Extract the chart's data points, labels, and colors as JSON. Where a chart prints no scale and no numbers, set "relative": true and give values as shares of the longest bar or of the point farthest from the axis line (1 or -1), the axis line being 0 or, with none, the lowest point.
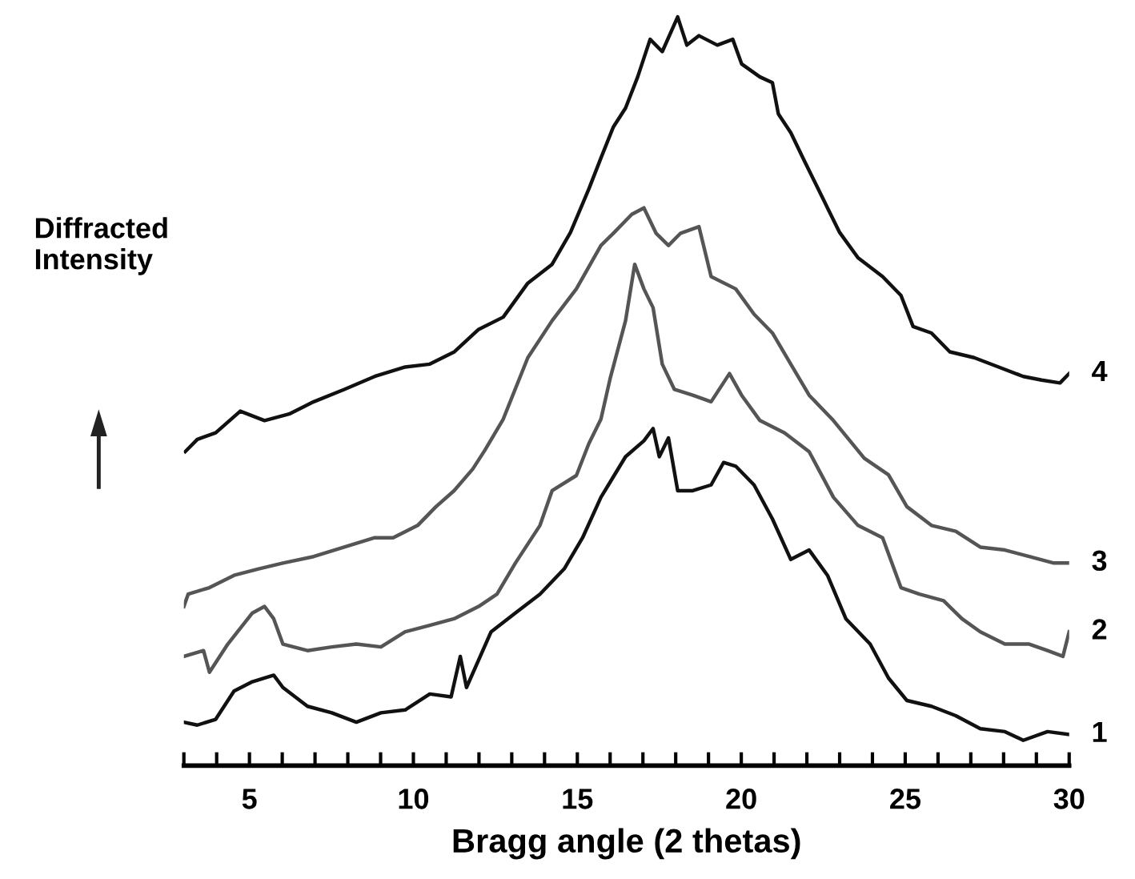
{
  "chart_data": {
    "type": "line",
    "relative": true,
    "xlabel": "Bragg angle (2 thetas)",
    "ylabel": "Diffracted Intensity",
    "xlim": [
      3,
      30
    ],
    "xticks": [
      {
        "value": 3,
        "label": null
      },
      {
        "value": 4,
        "label": null
      },
      5,
      {
        "value": 6,
        "label": null
      },
      {
        "value": 7,
        "label": null
      },
      {
        "value": 8,
        "label": null
      },
      {
        "value": 9,
        "label": null
      },
      10,
      {
        "value": 11,
        "label": null
      },
      {
        "value": 12,
        "label": null
      },
      {
        "value": 13,
        "label": null
      },
      {
        "value": 14,
        "label": null
      },
      15,
      {
        "value": 16,
        "label": null
      },
      {
        "value": 17,
        "label": null
      },
      {
        "value": 18,
        "label": null
      },
      {
        "value": 19,
        "label": null
      },
      20,
      {
        "value": 21,
        "label": null
      },
      {
        "value": 22,
        "label": null
      },
      {
        "value": 23,
        "label": null
      },
      {
        "value": 24,
        "label": null
      },
      25,
      {
        "value": 26,
        "label": null
      },
      {
        "value": 27,
        "label": null
      },
      {
        "value": 28,
        "label": null
      },
      {
        "value": 29,
        "label": null
      },
      30
    ],
    "grid": false,
    "legend": false,
    "marker": "none",
    "line_style": "solid",
    "series": [
      {
        "name": "1",
        "color": "#111111",
        "x": [
          3.0,
          3.41,
          3.97,
          4.53,
          5.09,
          5.74,
          6.02,
          6.77,
          7.51,
          8.26,
          9.01,
          9.75,
          10.5,
          11.15,
          11.43,
          11.62,
          12.37,
          13.11,
          13.86,
          14.6,
          15.16,
          15.72,
          16.47,
          17.03,
          17.31,
          17.5,
          17.78,
          18.06,
          18.52,
          19.08,
          19.46,
          19.83,
          20.39,
          20.95,
          21.51,
          22.07,
          22.63,
          23.19,
          23.93,
          24.49,
          25.05,
          25.8,
          26.54,
          27.29,
          28.04,
          28.6,
          29.34,
          30.0
        ],
        "values": [
          0.025,
          0.021,
          0.029,
          0.068,
          0.081,
          0.09,
          0.073,
          0.047,
          0.038,
          0.025,
          0.038,
          0.042,
          0.064,
          0.06,
          0.116,
          0.073,
          0.15,
          0.176,
          0.202,
          0.237,
          0.28,
          0.336,
          0.392,
          0.414,
          0.431,
          0.392,
          0.418,
          0.345,
          0.345,
          0.353,
          0.384,
          0.379,
          0.353,
          0.306,
          0.25,
          0.263,
          0.228,
          0.168,
          0.133,
          0.086,
          0.055,
          0.047,
          0.034,
          0.016,
          0.012,
          0,
          0.012,
          0.008
        ]
      },
      {
        "name": "2",
        "color": "#555555",
        "x": [
          3.0,
          3.6,
          3.78,
          4.34,
          5.09,
          5.46,
          5.74,
          6.02,
          6.77,
          7.51,
          8.26,
          9.01,
          9.75,
          10.5,
          11.24,
          11.99,
          12.55,
          13.11,
          13.86,
          14.23,
          14.97,
          15.35,
          15.72,
          16.0,
          16.47,
          16.75,
          17.03,
          17.31,
          17.59,
          17.96,
          18.52,
          19.08,
          19.64,
          20.01,
          20.57,
          21.32,
          22.07,
          22.81,
          23.56,
          24.31,
          24.87,
          25.43,
          26.17,
          26.73,
          27.29,
          28.04,
          28.78,
          29.34,
          29.81,
          30.0
        ],
        "values": [
          0.116,
          0.124,
          0.094,
          0.133,
          0.176,
          0.185,
          0.168,
          0.133,
          0.124,
          0.129,
          0.133,
          0.129,
          0.15,
          0.159,
          0.168,
          0.185,
          0.202,
          0.245,
          0.297,
          0.345,
          0.366,
          0.41,
          0.444,
          0.5,
          0.58,
          0.658,
          0.624,
          0.598,
          0.52,
          0.485,
          0.477,
          0.468,
          0.507,
          0.477,
          0.442,
          0.425,
          0.399,
          0.336,
          0.297,
          0.28,
          0.211,
          0.202,
          0.193,
          0.168,
          0.15,
          0.133,
          0.133,
          0.124,
          0.116,
          0.15
        ]
      },
      {
        "name": "3",
        "color": "#555555",
        "x": [
          3.0,
          3.13,
          3.78,
          4.53,
          5.28,
          6.02,
          6.96,
          7.89,
          8.82,
          9.38,
          10.13,
          10.69,
          11.24,
          11.81,
          12.18,
          12.74,
          13.49,
          14.23,
          14.97,
          15.72,
          16.1,
          16.66,
          17.03,
          17.4,
          17.78,
          18.15,
          18.71,
          19.08,
          19.83,
          20.39,
          20.95,
          21.51,
          22.07,
          22.81,
          23.75,
          24.49,
          25.05,
          25.8,
          26.54,
          27.29,
          28.04,
          28.78,
          29.53,
          30.0
        ],
        "values": [
          0.185,
          0.202,
          0.211,
          0.228,
          0.237,
          0.245,
          0.254,
          0.267,
          0.28,
          0.28,
          0.297,
          0.323,
          0.345,
          0.375,
          0.401,
          0.444,
          0.529,
          0.58,
          0.624,
          0.684,
          0.701,
          0.727,
          0.736,
          0.701,
          0.684,
          0.701,
          0.71,
          0.641,
          0.624,
          0.589,
          0.563,
          0.52,
          0.477,
          0.442,
          0.39,
          0.367,
          0.323,
          0.297,
          0.289,
          0.267,
          0.263,
          0.254,
          0.245,
          0.245
        ]
      },
      {
        "name": "4",
        "color": "#111111",
        "x": [
          3.04,
          3.41,
          3.97,
          4.72,
          5.46,
          6.21,
          6.96,
          7.89,
          8.82,
          9.75,
          10.5,
          11.25,
          11.99,
          12.74,
          13.49,
          14.23,
          14.79,
          15.35,
          15.72,
          16.1,
          16.47,
          16.84,
          17.22,
          17.59,
          18.06,
          18.34,
          18.71,
          19.27,
          19.74,
          20.01,
          20.57,
          20.95,
          21.13,
          21.51,
          21.88,
          22.25,
          22.63,
          23.0,
          23.56,
          24.31,
          24.87,
          25.24,
          25.8,
          26.36,
          27.1,
          27.85,
          28.6,
          29.16,
          29.72,
          30.0
        ],
        "values": [
          0.399,
          0.416,
          0.425,
          0.455,
          0.442,
          0.451,
          0.468,
          0.485,
          0.503,
          0.516,
          0.52,
          0.537,
          0.568,
          0.585,
          0.632,
          0.658,
          0.702,
          0.762,
          0.805,
          0.848,
          0.874,
          0.917,
          0.969,
          0.952,
          1.0,
          0.961,
          0.974,
          0.961,
          0.969,
          0.935,
          0.917,
          0.909,
          0.866,
          0.84,
          0.805,
          0.771,
          0.736,
          0.702,
          0.667,
          0.641,
          0.615,
          0.572,
          0.563,
          0.537,
          0.529,
          0.516,
          0.503,
          0.498,
          0.494,
          0.507
        ]
      }
    ]
  }
}
